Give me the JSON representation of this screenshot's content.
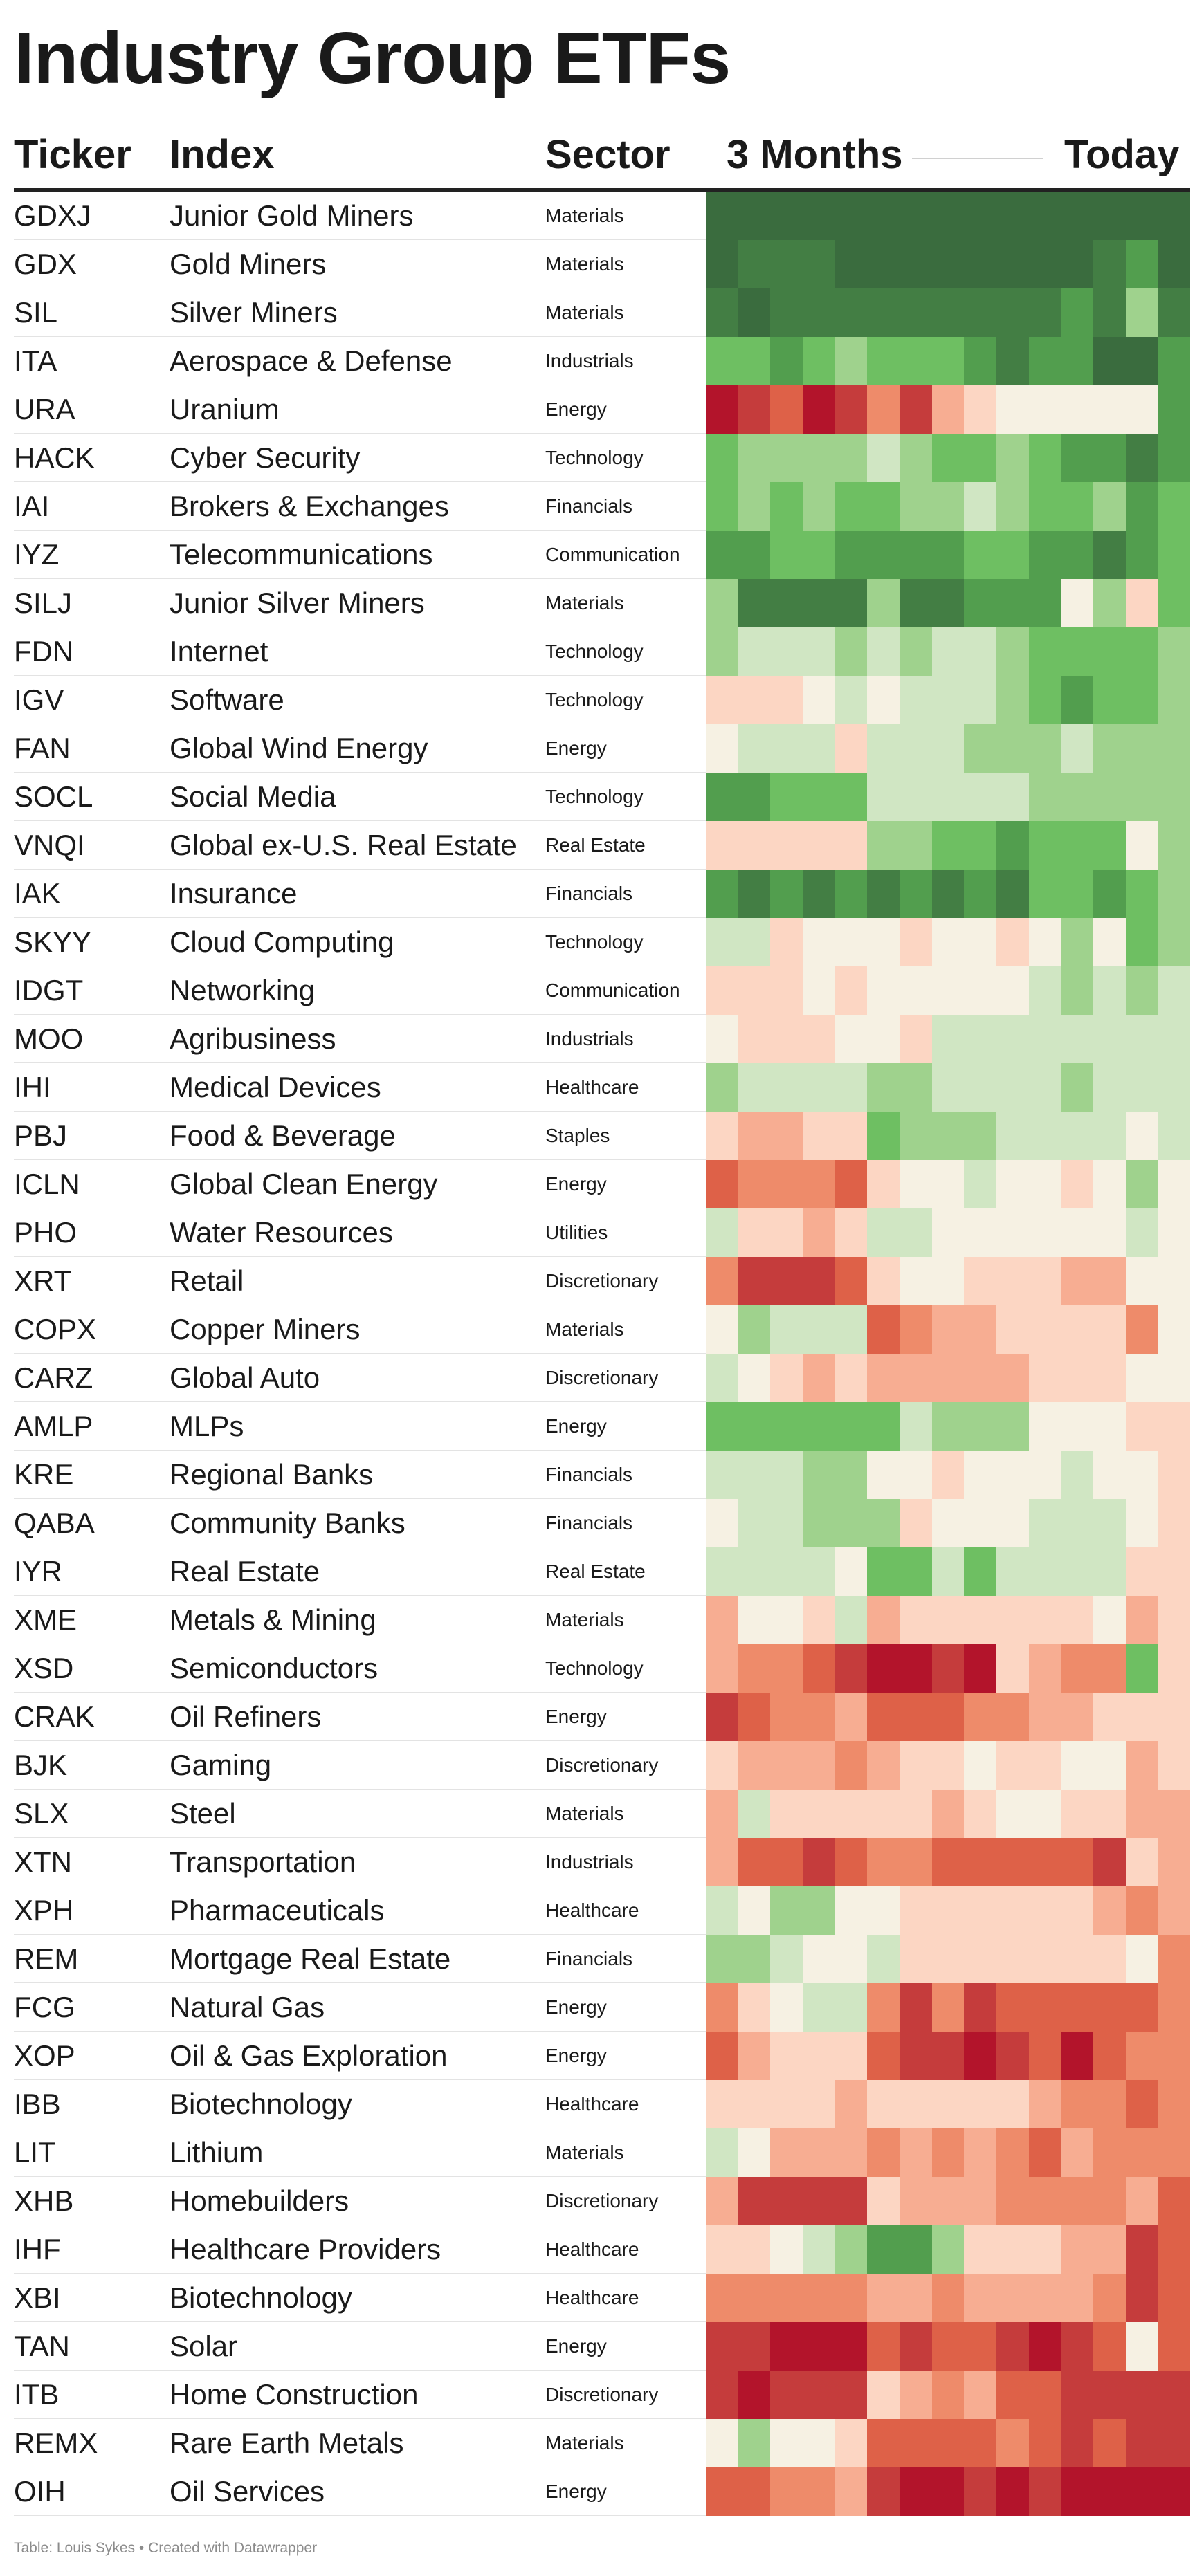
{
  "title": "Industry Group ETFs",
  "headers": {
    "ticker": "Ticker",
    "index": "Index",
    "sector": "Sector",
    "months": "3 Months",
    "today": "Today"
  },
  "footer": "Table: Louis Sykes • Created with Datawrapper",
  "chart_data": {
    "type": "heatmap",
    "columns": [
      "Ticker",
      "Index",
      "Sector",
      "3 Months",
      "Today"
    ],
    "rows": [
      {
        "ticker": "GDXJ",
        "index": "Junior Gold Miners",
        "sector": "Materials",
        "heat": [
          6,
          6,
          6,
          6,
          6,
          6,
          6,
          6,
          6,
          6,
          6,
          6,
          6,
          6,
          6
        ]
      },
      {
        "ticker": "GDX",
        "index": "Gold Miners",
        "sector": "Materials",
        "heat": [
          6,
          5,
          5,
          5,
          6,
          6,
          6,
          6,
          6,
          6,
          6,
          6,
          5,
          4,
          6
        ]
      },
      {
        "ticker": "SIL",
        "index": "Silver Miners",
        "sector": "Materials",
        "heat": [
          5,
          6,
          5,
          5,
          5,
          5,
          5,
          5,
          5,
          5,
          5,
          4,
          5,
          2,
          5
        ]
      },
      {
        "ticker": "ITA",
        "index": "Aerospace & Defense",
        "sector": "Industrials",
        "heat": [
          3,
          3,
          4,
          3,
          2,
          3,
          3,
          3,
          4,
          5,
          4,
          4,
          6,
          6,
          4
        ]
      },
      {
        "ticker": "URA",
        "index": "Uranium",
        "sector": "Energy",
        "heat": [
          -6,
          -5,
          -4,
          -6,
          -5,
          -3,
          -5,
          -2,
          -1,
          0,
          0,
          0,
          0,
          0,
          4
        ]
      },
      {
        "ticker": "HACK",
        "index": "Cyber Security",
        "sector": "Technology",
        "heat": [
          3,
          2,
          2,
          2,
          2,
          1,
          2,
          3,
          3,
          2,
          3,
          4,
          4,
          5,
          4
        ]
      },
      {
        "ticker": "IAI",
        "index": "Brokers & Exchanges",
        "sector": "Financials",
        "heat": [
          3,
          2,
          3,
          2,
          3,
          3,
          2,
          2,
          1,
          2,
          3,
          3,
          2,
          4,
          3
        ]
      },
      {
        "ticker": "IYZ",
        "index": "Telecommunications",
        "sector": "Communication",
        "heat": [
          4,
          4,
          3,
          3,
          4,
          4,
          4,
          4,
          3,
          3,
          4,
          4,
          5,
          4,
          3
        ]
      },
      {
        "ticker": "SILJ",
        "index": "Junior Silver Miners",
        "sector": "Materials",
        "heat": [
          2,
          5,
          5,
          5,
          5,
          2,
          5,
          5,
          4,
          4,
          4,
          0,
          2,
          -1,
          3
        ]
      },
      {
        "ticker": "FDN",
        "index": "Internet",
        "sector": "Technology",
        "heat": [
          2,
          1,
          1,
          1,
          2,
          1,
          2,
          1,
          1,
          2,
          3,
          3,
          3,
          3,
          2
        ]
      },
      {
        "ticker": "IGV",
        "index": "Software",
        "sector": "Technology",
        "heat": [
          -1,
          -1,
          -1,
          0,
          1,
          0,
          1,
          1,
          1,
          2,
          3,
          4,
          3,
          3,
          2
        ]
      },
      {
        "ticker": "FAN",
        "index": "Global Wind Energy",
        "sector": "Energy",
        "heat": [
          0,
          1,
          1,
          1,
          -1,
          1,
          1,
          1,
          2,
          2,
          2,
          1,
          2,
          2,
          2
        ]
      },
      {
        "ticker": "SOCL",
        "index": "Social Media",
        "sector": "Technology",
        "heat": [
          4,
          4,
          3,
          3,
          3,
          1,
          1,
          1,
          1,
          1,
          2,
          2,
          2,
          2,
          2
        ]
      },
      {
        "ticker": "VNQI",
        "index": "Global ex-U.S. Real Estate",
        "sector": "Real Estate",
        "heat": [
          -1,
          -1,
          -1,
          -1,
          -1,
          2,
          2,
          3,
          3,
          4,
          3,
          3,
          3,
          0,
          2
        ]
      },
      {
        "ticker": "IAK",
        "index": "Insurance",
        "sector": "Financials",
        "heat": [
          4,
          5,
          4,
          5,
          4,
          5,
          4,
          5,
          4,
          5,
          3,
          3,
          4,
          3,
          2
        ]
      },
      {
        "ticker": "SKYY",
        "index": "Cloud Computing",
        "sector": "Technology",
        "heat": [
          1,
          1,
          -1,
          0,
          0,
          0,
          -1,
          0,
          0,
          -1,
          0,
          2,
          0,
          3,
          2
        ]
      },
      {
        "ticker": "IDGT",
        "index": "Networking",
        "sector": "Communication",
        "heat": [
          -1,
          -1,
          -1,
          0,
          -1,
          0,
          0,
          0,
          0,
          0,
          1,
          2,
          1,
          2,
          1
        ]
      },
      {
        "ticker": "MOO",
        "index": "Agribusiness",
        "sector": "Industrials",
        "heat": [
          0,
          -1,
          -1,
          -1,
          0,
          0,
          -1,
          1,
          1,
          1,
          1,
          1,
          1,
          1,
          1
        ]
      },
      {
        "ticker": "IHI",
        "index": "Medical Devices",
        "sector": "Healthcare",
        "heat": [
          2,
          1,
          1,
          1,
          1,
          2,
          2,
          1,
          1,
          1,
          1,
          2,
          1,
          1,
          1
        ]
      },
      {
        "ticker": "PBJ",
        "index": "Food & Beverage",
        "sector": "Staples",
        "heat": [
          -1,
          -2,
          -2,
          -1,
          -1,
          3,
          2,
          2,
          2,
          1,
          1,
          1,
          1,
          0,
          1
        ]
      },
      {
        "ticker": "ICLN",
        "index": "Global Clean Energy",
        "sector": "Energy",
        "heat": [
          -4,
          -3,
          -3,
          -3,
          -4,
          -1,
          0,
          0,
          1,
          0,
          0,
          -1,
          0,
          2,
          0
        ]
      },
      {
        "ticker": "PHO",
        "index": "Water Resources",
        "sector": "Utilities",
        "heat": [
          1,
          -1,
          -1,
          -2,
          -1,
          1,
          1,
          0,
          0,
          0,
          0,
          0,
          0,
          1,
          0
        ]
      },
      {
        "ticker": "XRT",
        "index": "Retail",
        "sector": "Discretionary",
        "heat": [
          -3,
          -5,
          -5,
          -5,
          -4,
          -1,
          0,
          0,
          -1,
          -1,
          -1,
          -2,
          -2,
          0,
          0
        ]
      },
      {
        "ticker": "COPX",
        "index": "Copper Miners",
        "sector": "Materials",
        "heat": [
          0,
          2,
          1,
          1,
          1,
          -4,
          -3,
          -2,
          -2,
          -1,
          -1,
          -1,
          -1,
          -3,
          0
        ]
      },
      {
        "ticker": "CARZ",
        "index": "Global Auto",
        "sector": "Discretionary",
        "heat": [
          1,
          0,
          -1,
          -2,
          -1,
          -2,
          -2,
          -2,
          -2,
          -2,
          -1,
          -1,
          -1,
          0,
          0
        ]
      },
      {
        "ticker": "AMLP",
        "index": "MLPs",
        "sector": "Energy",
        "heat": [
          3,
          3,
          3,
          3,
          3,
          3,
          1,
          2,
          2,
          2,
          0,
          0,
          0,
          -1,
          -1
        ]
      },
      {
        "ticker": "KRE",
        "index": "Regional Banks",
        "sector": "Financials",
        "heat": [
          1,
          1,
          1,
          2,
          2,
          0,
          0,
          -1,
          0,
          0,
          0,
          1,
          0,
          0,
          -1
        ]
      },
      {
        "ticker": "QABA",
        "index": "Community Banks",
        "sector": "Financials",
        "heat": [
          0,
          1,
          1,
          2,
          2,
          2,
          -1,
          0,
          0,
          0,
          1,
          1,
          1,
          0,
          -1
        ]
      },
      {
        "ticker": "IYR",
        "index": "Real Estate",
        "sector": "Real Estate",
        "heat": [
          1,
          1,
          1,
          1,
          0,
          3,
          3,
          1,
          3,
          1,
          1,
          1,
          1,
          -1,
          -1
        ]
      },
      {
        "ticker": "XME",
        "index": "Metals & Mining",
        "sector": "Materials",
        "heat": [
          -2,
          0,
          0,
          -1,
          1,
          -2,
          -1,
          -1,
          -1,
          -1,
          -1,
          -1,
          0,
          -2,
          -1
        ]
      },
      {
        "ticker": "XSD",
        "index": "Semiconductors",
        "sector": "Technology",
        "heat": [
          -2,
          -3,
          -3,
          -4,
          -5,
          -6,
          -6,
          -5,
          -6,
          -1,
          -2,
          -3,
          -3,
          3,
          -1
        ]
      },
      {
        "ticker": "CRAK",
        "index": "Oil Refiners",
        "sector": "Energy",
        "heat": [
          -5,
          -4,
          -3,
          -3,
          -2,
          -4,
          -4,
          -4,
          -3,
          -3,
          -2,
          -2,
          -1,
          -1,
          -1
        ]
      },
      {
        "ticker": "BJK",
        "index": "Gaming",
        "sector": "Discretionary",
        "heat": [
          -1,
          -2,
          -2,
          -2,
          -3,
          -2,
          -1,
          -1,
          0,
          -1,
          -1,
          0,
          0,
          -2,
          -1
        ]
      },
      {
        "ticker": "SLX",
        "index": "Steel",
        "sector": "Materials",
        "heat": [
          -2,
          1,
          -1,
          -1,
          -1,
          -1,
          -1,
          -2,
          -1,
          0,
          0,
          -1,
          -1,
          -2,
          -2
        ]
      },
      {
        "ticker": "XTN",
        "index": "Transportation",
        "sector": "Industrials",
        "heat": [
          -2,
          -4,
          -4,
          -5,
          -4,
          -3,
          -3,
          -4,
          -4,
          -4,
          -4,
          -4,
          -5,
          -1,
          -2
        ]
      },
      {
        "ticker": "XPH",
        "index": "Pharmaceuticals",
        "sector": "Healthcare",
        "heat": [
          1,
          0,
          2,
          2,
          0,
          0,
          -1,
          -1,
          -1,
          -1,
          -1,
          -1,
          -2,
          -3,
          -2
        ]
      },
      {
        "ticker": "REM",
        "index": "Mortgage Real Estate",
        "sector": "Financials",
        "heat": [
          2,
          2,
          1,
          0,
          0,
          1,
          -1,
          -1,
          -1,
          -1,
          -1,
          -1,
          -1,
          0,
          -3
        ]
      },
      {
        "ticker": "FCG",
        "index": "Natural Gas",
        "sector": "Energy",
        "heat": [
          -3,
          -1,
          0,
          1,
          1,
          -3,
          -5,
          -3,
          -5,
          -4,
          -4,
          -4,
          -4,
          -4,
          -3
        ]
      },
      {
        "ticker": "XOP",
        "index": "Oil & Gas Exploration",
        "sector": "Energy",
        "heat": [
          -4,
          -2,
          -1,
          -1,
          -1,
          -4,
          -5,
          -5,
          -6,
          -5,
          -4,
          -6,
          -4,
          -3,
          -3
        ]
      },
      {
        "ticker": "IBB",
        "index": "Biotechnology",
        "sector": "Healthcare",
        "heat": [
          -1,
          -1,
          -1,
          -1,
          -2,
          -1,
          -1,
          -1,
          -1,
          -1,
          -2,
          -3,
          -3,
          -4,
          -3
        ]
      },
      {
        "ticker": "LIT",
        "index": "Lithium",
        "sector": "Materials",
        "heat": [
          1,
          0,
          -2,
          -2,
          -2,
          -3,
          -2,
          -3,
          -2,
          -3,
          -4,
          -2,
          -3,
          -3,
          -3
        ]
      },
      {
        "ticker": "XHB",
        "index": "Homebuilders",
        "sector": "Discretionary",
        "heat": [
          -2,
          -5,
          -5,
          -5,
          -5,
          -1,
          -2,
          -2,
          -2,
          -3,
          -3,
          -3,
          -3,
          -2,
          -4
        ]
      },
      {
        "ticker": "IHF",
        "index": "Healthcare Providers",
        "sector": "Healthcare",
        "heat": [
          -1,
          -1,
          0,
          1,
          2,
          4,
          4,
          2,
          -1,
          -1,
          -1,
          -2,
          -2,
          -5,
          -4
        ]
      },
      {
        "ticker": "XBI",
        "index": "Biotechnology",
        "sector": "Healthcare",
        "heat": [
          -3,
          -3,
          -3,
          -3,
          -3,
          -2,
          -2,
          -3,
          -2,
          -2,
          -2,
          -2,
          -3,
          -5,
          -4
        ]
      },
      {
        "ticker": "TAN",
        "index": "Solar",
        "sector": "Energy",
        "heat": [
          -5,
          -5,
          -6,
          -6,
          -6,
          -4,
          -5,
          -4,
          -4,
          -5,
          -6,
          -5,
          -4,
          0,
          -4
        ]
      },
      {
        "ticker": "ITB",
        "index": "Home Construction",
        "sector": "Discretionary",
        "heat": [
          -5,
          -6,
          -5,
          -5,
          -5,
          -1,
          -2,
          -3,
          -2,
          -4,
          -4,
          -5,
          -5,
          -5,
          -5
        ]
      },
      {
        "ticker": "REMX",
        "index": "Rare Earth Metals",
        "sector": "Materials",
        "heat": [
          0,
          2,
          0,
          0,
          -1,
          -4,
          -4,
          -4,
          -4,
          -3,
          -4,
          -5,
          -4,
          -5,
          -5
        ]
      },
      {
        "ticker": "OIH",
        "index": "Oil Services",
        "sector": "Energy",
        "heat": [
          -4,
          -4,
          -3,
          -3,
          -2,
          -5,
          -6,
          -6,
          -5,
          -6,
          -5,
          -6,
          -6,
          -6,
          -6
        ]
      }
    ]
  }
}
